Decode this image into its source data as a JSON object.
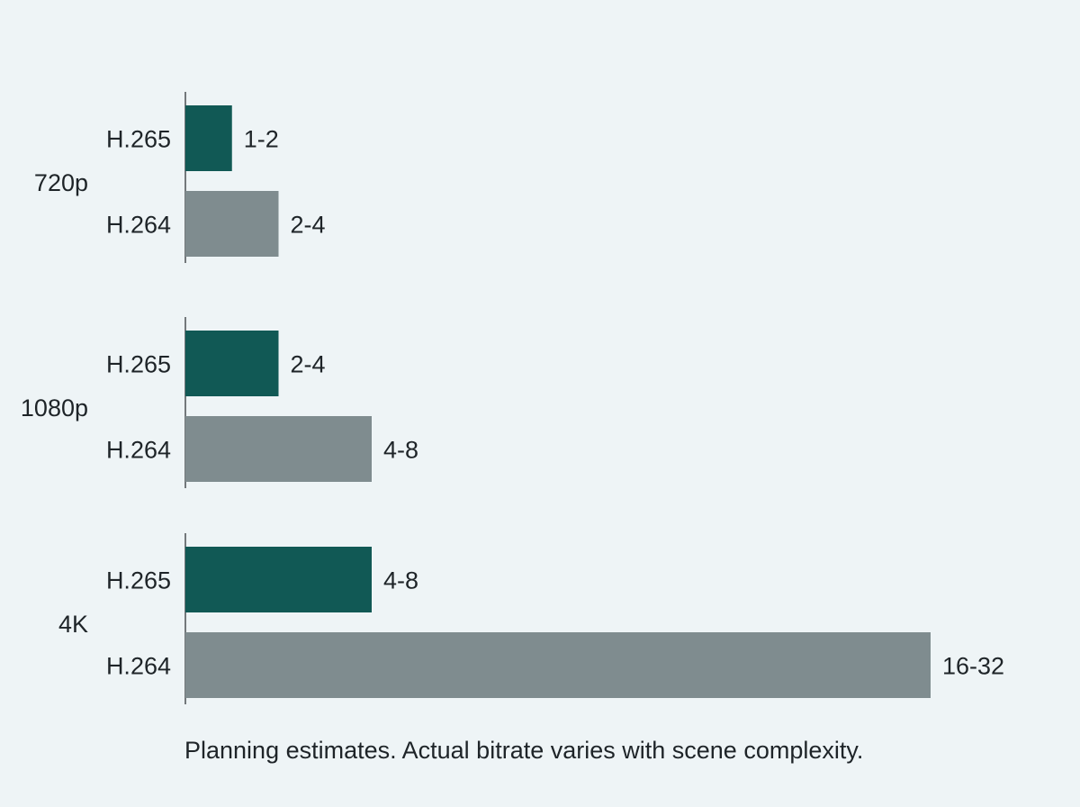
{
  "chart_data": {
    "type": "bar",
    "orientation": "horizontal",
    "unit_note": "",
    "groups": [
      {
        "label": "720p",
        "bars": [
          {
            "codec": "H.265",
            "value_range": [
              1,
              2
            ],
            "label": "1-2"
          },
          {
            "codec": "H.264",
            "value_range": [
              2,
              4
            ],
            "label": "2-4"
          }
        ]
      },
      {
        "label": "1080p",
        "bars": [
          {
            "codec": "H.265",
            "value_range": [
              2,
              4
            ],
            "label": "2-4"
          },
          {
            "codec": "H.264",
            "value_range": [
              4,
              8
            ],
            "label": "4-8"
          }
        ]
      },
      {
        "label": "4K",
        "bars": [
          {
            "codec": "H.265",
            "value_range": [
              4,
              8
            ],
            "label": "4-8"
          },
          {
            "codec": "H.264",
            "value_range": [
              16,
              32
            ],
            "label": "16-32"
          }
        ]
      }
    ],
    "xlim": [
      0,
      32
    ],
    "grid": false,
    "legend": "none",
    "colors": {
      "H.265": "#115955",
      "H.264": "#7f8c8f"
    }
  },
  "footnote": "Planning estimates. Actual bitrate varies with scene complexity."
}
